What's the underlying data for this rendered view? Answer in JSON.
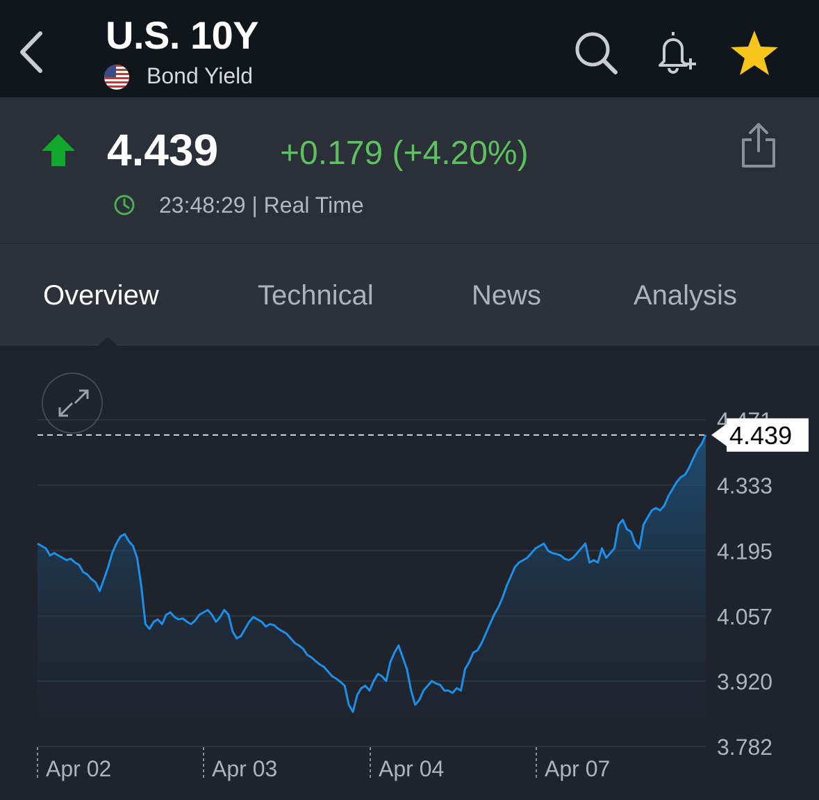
{
  "header": {
    "title": "U.S. 10Y",
    "subtitle": "Bond Yield",
    "back_icon": "chevron-left-icon",
    "search_icon": "search-icon",
    "alert_icon": "bell-plus-icon",
    "watchlist_icon": "star-icon",
    "star_color": "#f7c51c"
  },
  "quote": {
    "price": "4.439",
    "change": "+0.179 (+4.20%)",
    "time": "23:48:29 | Real Time",
    "direction_icon": "arrow-up-icon",
    "up_color": "#12a82d",
    "change_color": "#5cc15e"
  },
  "tabs": [
    {
      "label": "Overview",
      "active": true
    },
    {
      "label": "Technical",
      "active": false
    },
    {
      "label": "News",
      "active": false
    },
    {
      "label": "Analysis",
      "active": false
    }
  ],
  "chart_data": {
    "type": "area",
    "y_ticks": [
      "4.471",
      "4.333",
      "4.195",
      "4.057",
      "3.920",
      "3.782"
    ],
    "x_labels": [
      "Apr 02",
      "Apr 03",
      "Apr 04",
      "Apr 07"
    ],
    "current_value_label": "4.439",
    "ylim": [
      3.782,
      4.471
    ],
    "line_color": "#1e8fe8",
    "grid": true,
    "series": [
      {
        "values": [
          4.21,
          4.205,
          4.2,
          4.185,
          4.19,
          4.185,
          4.18,
          4.175,
          4.178,
          4.17,
          4.165,
          4.15,
          4.145,
          4.135,
          4.128,
          4.11,
          4.135,
          4.16,
          4.19,
          4.21,
          4.225,
          4.23,
          4.215,
          4.205,
          4.18,
          4.12,
          4.04,
          4.03,
          4.045,
          4.05,
          4.04,
          4.06,
          4.065,
          4.055,
          4.05,
          4.052,
          4.045,
          4.04,
          4.048,
          4.06,
          4.065,
          4.07,
          4.06,
          4.045,
          4.055,
          4.07,
          4.06,
          4.025,
          4.01,
          4.015,
          4.03,
          4.045,
          4.055,
          4.05,
          4.045,
          4.035,
          4.04,
          4.038,
          4.03,
          4.025,
          4.02,
          4.01,
          4.0,
          3.995,
          3.988,
          3.975,
          3.97,
          3.962,
          3.955,
          3.95,
          3.94,
          3.93,
          3.925,
          3.918,
          3.91,
          3.87,
          3.855,
          3.89,
          3.905,
          3.91,
          3.9,
          3.92,
          3.935,
          3.93,
          3.92,
          3.96,
          3.98,
          3.995,
          3.97,
          3.945,
          3.9,
          3.87,
          3.88,
          3.9,
          3.91,
          3.92,
          3.915,
          3.912,
          3.9,
          3.9,
          3.895,
          3.905,
          3.9,
          3.945,
          3.96,
          3.98,
          3.985,
          4.0,
          4.02,
          4.04,
          4.06,
          4.075,
          4.095,
          4.12,
          4.14,
          4.16,
          4.17,
          4.175,
          4.18,
          4.19,
          4.2,
          4.205,
          4.21,
          4.195,
          4.19,
          4.188,
          4.185,
          4.178,
          4.175,
          4.18,
          4.19,
          4.2,
          4.21,
          4.17,
          4.175,
          4.17,
          4.2,
          4.18,
          4.19,
          4.2,
          4.25,
          4.26,
          4.24,
          4.235,
          4.21,
          4.2,
          4.25,
          4.265,
          4.28,
          4.285,
          4.28,
          4.29,
          4.31,
          4.325,
          4.34,
          4.35,
          4.355,
          4.37,
          4.39,
          4.408,
          4.42,
          4.439
        ]
      }
    ]
  }
}
